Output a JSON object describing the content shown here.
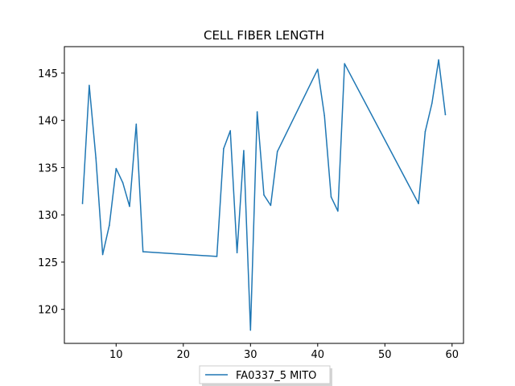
{
  "chart_data": {
    "type": "line",
    "title": "CELL FIBER LENGTH",
    "xlabel": "",
    "ylabel": "",
    "xlim": [
      2.3,
      61.7
    ],
    "ylim": [
      116.4,
      147.8
    ],
    "x_ticks": [
      10,
      20,
      30,
      40,
      50,
      60
    ],
    "y_ticks": [
      120,
      125,
      130,
      135,
      140,
      145
    ],
    "grid": false,
    "legend_position": "below",
    "series": [
      {
        "name": "FA0337_5 MITO",
        "color": "#1f77b4",
        "x": [
          5,
          6,
          7,
          8,
          9,
          10,
          11,
          12,
          13,
          14,
          25,
          26,
          27,
          28,
          29,
          30,
          31,
          32,
          33,
          34,
          40,
          41,
          42,
          43,
          44,
          55,
          56,
          57,
          58,
          59
        ],
        "y": [
          131.2,
          143.7,
          136.0,
          125.8,
          128.9,
          134.9,
          133.4,
          130.9,
          139.6,
          126.1,
          125.6,
          137.0,
          138.9,
          126.0,
          136.8,
          117.8,
          140.9,
          132.1,
          131.0,
          136.7,
          145.4,
          140.5,
          131.9,
          130.4,
          146.0,
          131.2,
          138.8,
          141.8,
          146.4,
          140.6
        ]
      }
    ]
  }
}
